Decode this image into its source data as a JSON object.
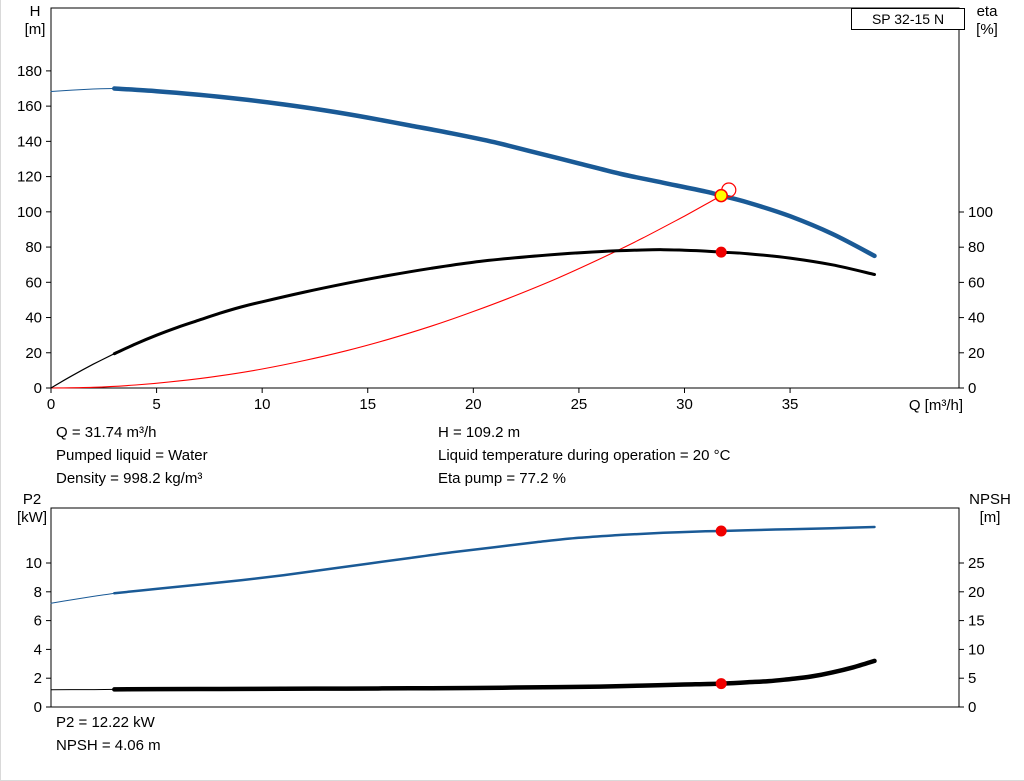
{
  "pump_model": "SP 32-15 N",
  "colors": {
    "curve_blue": "#1a5a96",
    "curve_black": "#000000",
    "system_red": "#ff0000",
    "marker_red": "#f00000",
    "marker_yellow": "#ffff00"
  },
  "info_top": {
    "q": "Q = 31.74 m³/h",
    "pumped_liquid": "Pumped liquid = Water",
    "density": "Density = 998.2 kg/m³",
    "h": "H = 109.2 m",
    "liquid_temp": "Liquid temperature during operation = 20 °C",
    "eta_pump": "Eta pump = 77.2 %"
  },
  "info_bottom": {
    "p2": "P2 = 12.22 kW",
    "npsh": "NPSH = 4.06 m"
  },
  "chart_data": [
    {
      "type": "line",
      "title": "SP 32-15 N",
      "xlabel": "Q [m³/h]",
      "ylabel_left": [
        "H",
        "[m]"
      ],
      "ylabel_right": [
        "eta",
        "[%]"
      ],
      "xlim": [
        0,
        43
      ],
      "x_ticks": [
        0,
        5,
        10,
        15,
        20,
        25,
        30,
        35
      ],
      "ylim_left": [
        0,
        215.7
      ],
      "left_ticks": [
        0,
        20,
        40,
        60,
        80,
        100,
        120,
        140,
        160,
        180
      ],
      "ylim_right": [
        0,
        215.9
      ],
      "right_ticks": [
        0,
        20,
        40,
        60,
        80,
        100
      ],
      "grid": false,
      "legend": "none",
      "series": [
        {
          "name": "system-curve",
          "axis": "left",
          "color": "#ff0000",
          "width": 1.1,
          "points": [
            [
              0,
              0
            ],
            [
              2,
              0.4
            ],
            [
              4,
              1.7
            ],
            [
              6,
              3.9
            ],
            [
              8,
              6.9
            ],
            [
              10,
              10.8
            ],
            [
              12,
              15.6
            ],
            [
              14,
              21.2
            ],
            [
              16,
              27.7
            ],
            [
              18,
              35.1
            ],
            [
              20,
              43.4
            ],
            [
              22,
              52.5
            ],
            [
              24,
              62.4
            ],
            [
              26,
              73.3
            ],
            [
              28,
              85.0
            ],
            [
              30,
              97.6
            ],
            [
              31,
              104.2
            ],
            [
              31.74,
              109.2
            ]
          ]
        },
        {
          "name": "head-curve-lead",
          "axis": "left",
          "color": "#1a5a96",
          "width": 1,
          "points": [
            [
              0,
              168.3
            ],
            [
              1,
              169.1
            ],
            [
              2,
              169.7
            ],
            [
              3,
              170
            ]
          ]
        },
        {
          "name": "head-curve",
          "axis": "left",
          "color": "#1a5a96",
          "width": 4.5,
          "points": [
            [
              3,
              170
            ],
            [
              5,
              168.5
            ],
            [
              7,
              166.5
            ],
            [
              9,
              164
            ],
            [
              11,
              161
            ],
            [
              13,
              157.5
            ],
            [
              15,
              153.5
            ],
            [
              17,
              149
            ],
            [
              19,
              144.5
            ],
            [
              21,
              139.5
            ],
            [
              23,
              133.5
            ],
            [
              25,
              127.5
            ],
            [
              27,
              121.5
            ],
            [
              29,
              116.5
            ],
            [
              31,
              111.5
            ],
            [
              31.74,
              109.2
            ],
            [
              33,
              105.3
            ],
            [
              35,
              97.5
            ],
            [
              37,
              87.5
            ],
            [
              39,
              75
            ]
          ]
        },
        {
          "name": "eta-curve-lead",
          "axis": "right",
          "color": "#000000",
          "width": 1.2,
          "points": [
            [
              0,
              0
            ],
            [
              1,
              7
            ],
            [
              2,
              13.5
            ],
            [
              3,
              19.5
            ]
          ]
        },
        {
          "name": "eta-curve",
          "axis": "right",
          "color": "#000000",
          "width": 3,
          "points": [
            [
              3,
              19.5
            ],
            [
              4,
              25
            ],
            [
              5,
              30
            ],
            [
              6,
              34.5
            ],
            [
              7,
              38.5
            ],
            [
              8,
              42.5
            ],
            [
              9,
              46
            ],
            [
              10,
              49
            ],
            [
              12,
              54.5
            ],
            [
              14,
              59.5
            ],
            [
              16,
              64
            ],
            [
              18,
              68
            ],
            [
              20,
              71.5
            ],
            [
              22,
              74
            ],
            [
              24,
              76
            ],
            [
              26,
              77.5
            ],
            [
              28,
              78.4
            ],
            [
              29,
              78.6
            ],
            [
              30,
              78.3
            ],
            [
              31,
              77.8
            ],
            [
              31.74,
              77.2
            ],
            [
              33,
              76.3
            ],
            [
              35,
              73.8
            ],
            [
              37,
              70
            ],
            [
              39,
              64.5
            ]
          ]
        }
      ],
      "markers": [
        {
          "name": "duty-ring",
          "axis": "left",
          "q": 32.1,
          "v": 112.4,
          "r": 7,
          "fill": "none",
          "stroke": "#ff0000",
          "sw": 1.2,
          "interactable": false
        },
        {
          "name": "duty-point",
          "axis": "left",
          "q": 31.74,
          "v": 109.2,
          "r": 6,
          "fill": "#ffff00",
          "stroke": "#ff0000",
          "sw": 1.5,
          "interactable": true
        },
        {
          "name": "eta-point",
          "axis": "right",
          "q": 31.74,
          "v": 77.2,
          "r": 5.5,
          "fill": "#f00000",
          "stroke": "none",
          "sw": 0,
          "interactable": false
        }
      ],
      "duty_point": {
        "q_m3h": 31.74,
        "h_m": 109.2,
        "eta_pct": 77.2
      }
    },
    {
      "type": "line",
      "title": "",
      "xlabel": "",
      "ylabel_left": [
        "P2",
        "[kW]"
      ],
      "ylabel_right": [
        "NPSH",
        "[m]"
      ],
      "xlim": [
        0,
        43
      ],
      "x_ticks": [],
      "ylim_left": [
        0,
        13.82
      ],
      "left_ticks": [
        0,
        2,
        4,
        6,
        8,
        10
      ],
      "ylim_right": [
        0,
        34.55
      ],
      "right_ticks": [
        0,
        5,
        10,
        15,
        20,
        25
      ],
      "grid": false,
      "legend": "none",
      "series": [
        {
          "name": "p2-curve-lead",
          "axis": "left",
          "color": "#1a5a96",
          "width": 1,
          "points": [
            [
              0,
              7.2
            ],
            [
              1,
              7.45
            ],
            [
              2,
              7.68
            ],
            [
              3,
              7.9
            ]
          ]
        },
        {
          "name": "p2-curve",
          "axis": "left",
          "color": "#1a5a96",
          "width": 2.5,
          "points": [
            [
              3,
              7.9
            ],
            [
              5,
              8.2
            ],
            [
              7,
              8.5
            ],
            [
              9,
              8.8
            ],
            [
              11,
              9.15
            ],
            [
              13,
              9.55
            ],
            [
              15,
              9.95
            ],
            [
              17,
              10.35
            ],
            [
              19,
              10.75
            ],
            [
              21,
              11.1
            ],
            [
              23,
              11.45
            ],
            [
              25,
              11.75
            ],
            [
              27,
              11.95
            ],
            [
              29,
              12.1
            ],
            [
              31,
              12.2
            ],
            [
              31.74,
              12.22
            ],
            [
              33,
              12.28
            ],
            [
              35,
              12.35
            ],
            [
              37,
              12.42
            ],
            [
              39,
              12.5
            ]
          ]
        },
        {
          "name": "npsh-curve-lead",
          "axis": "right",
          "color": "#000000",
          "width": 1,
          "points": [
            [
              0,
              3.0
            ],
            [
              1.5,
              3.02
            ],
            [
              3,
              3.05
            ]
          ]
        },
        {
          "name": "npsh-curve",
          "axis": "right",
          "color": "#000000",
          "width": 4.5,
          "points": [
            [
              3,
              3.05
            ],
            [
              5,
              3.1
            ],
            [
              8,
              3.13
            ],
            [
              11,
              3.17
            ],
            [
              14,
              3.2
            ],
            [
              17,
              3.25
            ],
            [
              20,
              3.3
            ],
            [
              22,
              3.38
            ],
            [
              24,
              3.45
            ],
            [
              26,
              3.55
            ],
            [
              28,
              3.72
            ],
            [
              30,
              3.9
            ],
            [
              31.74,
              4.06
            ],
            [
              33,
              4.3
            ],
            [
              34,
              4.5
            ],
            [
              35,
              4.85
            ],
            [
              36,
              5.3
            ],
            [
              37,
              6.0
            ],
            [
              38,
              6.9
            ],
            [
              39,
              8.0
            ]
          ]
        }
      ],
      "markers": [
        {
          "name": "p2-point",
          "axis": "left",
          "q": 31.74,
          "v": 12.22,
          "r": 5.5,
          "fill": "#f00000",
          "stroke": "none",
          "sw": 0,
          "interactable": false
        },
        {
          "name": "npsh-point",
          "axis": "right",
          "q": 31.74,
          "v": 4.06,
          "r": 5.5,
          "fill": "#f00000",
          "stroke": "none",
          "sw": 0,
          "interactable": false
        }
      ],
      "duty_point": {
        "q_m3h": 31.74,
        "p2_kw": 12.22,
        "npsh_m": 4.06
      }
    }
  ]
}
